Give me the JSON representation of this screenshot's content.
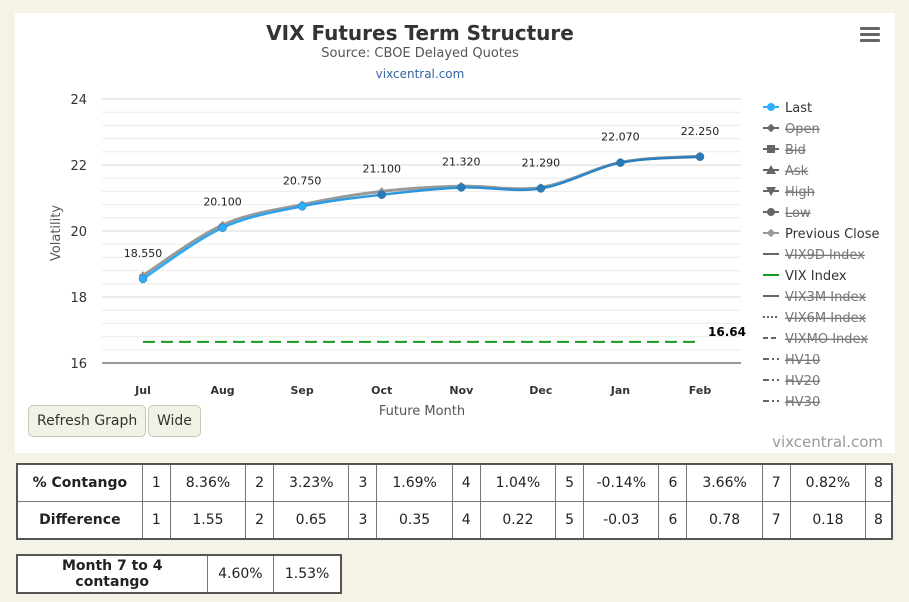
{
  "title": "VIX Futures Term Structure",
  "subtitle": "Source: CBOE Delayed Quotes",
  "source_link": "vixcentral.com",
  "credits": "vixcentral.com",
  "buttons": {
    "refresh": "Refresh Graph",
    "wide": "Wide"
  },
  "menu_icon": "hamburger-menu-icon",
  "colors": {
    "last": "#2caffe",
    "last_line": "#2b7bb9",
    "prev_close": "#999999",
    "vix": "#1a9a1a",
    "title": "#333333",
    "link": "#3465a4"
  },
  "chart_data": {
    "type": "line",
    "title": "VIX Futures Term Structure",
    "subtitle": "Source: CBOE Delayed Quotes",
    "xlabel": "Future Month",
    "ylabel": "Volatility",
    "categories": [
      "Jul",
      "Aug",
      "Sep",
      "Oct",
      "Nov",
      "Dec",
      "Jan",
      "Feb"
    ],
    "ylim": [
      16,
      24
    ],
    "yticks": [
      "16",
      "18",
      "20",
      "22",
      "24"
    ],
    "grid": true,
    "legend_position": "right",
    "series": [
      {
        "name": "Last",
        "values": [
          18.55,
          20.1,
          20.75,
          21.1,
          21.32,
          21.29,
          22.07,
          22.25
        ],
        "labels": [
          "18.550",
          "20.100",
          "20.750",
          "21.100",
          "21.320",
          "21.290",
          "22.070",
          "22.250"
        ]
      },
      {
        "name": "Previous Close",
        "values": [
          18.65,
          20.18,
          20.8,
          21.2,
          21.36,
          21.32,
          22.08,
          22.27
        ]
      },
      {
        "name": "VIX Index",
        "values": [
          16.64,
          16.64,
          16.64,
          16.64,
          16.64,
          16.64,
          16.64,
          16.64
        ],
        "end_label": "16.64"
      }
    ],
    "legend": [
      {
        "name": "Last",
        "hidden": false,
        "symbol": "circle"
      },
      {
        "name": "Open",
        "hidden": true,
        "symbol": "diamond"
      },
      {
        "name": "Bid",
        "hidden": true,
        "symbol": "square"
      },
      {
        "name": "Ask",
        "hidden": true,
        "symbol": "triangle"
      },
      {
        "name": "High",
        "hidden": true,
        "symbol": "triangle-down"
      },
      {
        "name": "Low",
        "hidden": true,
        "symbol": "circle"
      },
      {
        "name": "Previous Close",
        "hidden": false,
        "symbol": "diamond"
      },
      {
        "name": "VIX9D Index",
        "hidden": true,
        "symbol": "line"
      },
      {
        "name": "VIX Index",
        "hidden": false,
        "symbol": "line"
      },
      {
        "name": "VIX3M Index",
        "hidden": true,
        "symbol": "line"
      },
      {
        "name": "VIX6M Index",
        "hidden": true,
        "symbol": "dot"
      },
      {
        "name": "VIXMO Index",
        "hidden": true,
        "symbol": "dash"
      },
      {
        "name": "HV10",
        "hidden": true,
        "symbol": "dashdot"
      },
      {
        "name": "HV20",
        "hidden": true,
        "symbol": "dashdot"
      },
      {
        "name": "HV30",
        "hidden": true,
        "symbol": "dashdot"
      }
    ]
  },
  "contango_table": {
    "rows": [
      {
        "label": "% Contango",
        "cells": [
          [
            "1",
            "8.36%"
          ],
          [
            "2",
            "3.23%"
          ],
          [
            "3",
            "1.69%"
          ],
          [
            "4",
            "1.04%"
          ],
          [
            "5",
            "-0.14%"
          ],
          [
            "6",
            "3.66%"
          ],
          [
            "7",
            "0.82%"
          ]
        ],
        "last": "8"
      },
      {
        "label": "Difference",
        "cells": [
          [
            "1",
            "1.55"
          ],
          [
            "2",
            "0.65"
          ],
          [
            "3",
            "0.35"
          ],
          [
            "4",
            "0.22"
          ],
          [
            "5",
            "-0.03"
          ],
          [
            "6",
            "0.78"
          ],
          [
            "7",
            "0.18"
          ]
        ],
        "last": "8"
      }
    ]
  },
  "month_table": {
    "label": "Month 7 to 4 contango",
    "values": [
      "4.60%",
      "1.53%"
    ]
  }
}
